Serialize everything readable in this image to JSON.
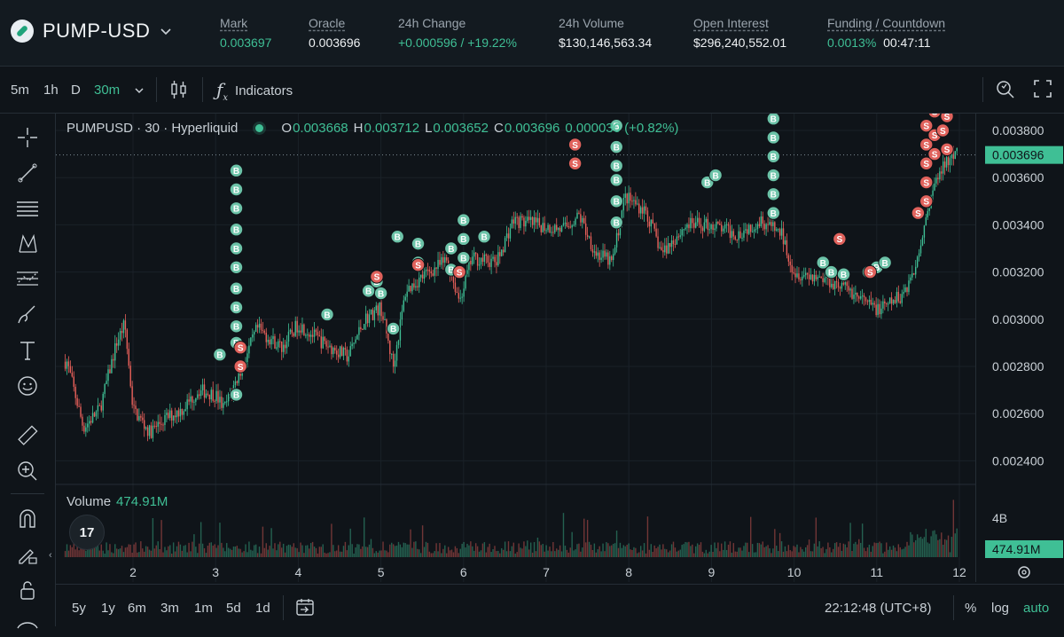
{
  "market": {
    "symbol": "PUMP-USD",
    "mark_label": "Mark",
    "mark": "0.003697",
    "oracle_label": "Oracle",
    "oracle": "0.003696",
    "change_label": "24h Change",
    "change": "+0.000596 / +19.22%",
    "volume_label": "24h Volume",
    "volume": "$130,146,563.34",
    "oi_label": "Open Interest",
    "oi": "$296,240,552.01",
    "funding_label": "Funding / Countdown",
    "funding": "0.0013%",
    "countdown": "00:47:11"
  },
  "toolbar": {
    "timeframes": [
      "5m",
      "1h",
      "D",
      "30m"
    ],
    "active_timeframe": "30m",
    "indicators_label": "Indicators"
  },
  "legend": {
    "title": "PUMPUSD · 30 · Hyperliquid",
    "o_label": "O",
    "o": "0.003668",
    "h_label": "H",
    "h": "0.003712",
    "l_label": "L",
    "l": "0.003652",
    "c_label": "C",
    "c": "0.003696",
    "chg": "0.000030 (+0.82%)"
  },
  "volume": {
    "label": "Volume",
    "value": "474.91M",
    "axis_tick": "4B",
    "current": "474.91M"
  },
  "price_axis": {
    "ticks": [
      "0.003800",
      "0.003600",
      "0.003400",
      "0.003200",
      "0.003000",
      "0.002800",
      "0.002600",
      "0.002400"
    ],
    "current": "0.003696"
  },
  "time_axis": {
    "ticks": [
      "2",
      "3",
      "4",
      "5",
      "6",
      "7",
      "8",
      "9",
      "10",
      "11",
      "12"
    ]
  },
  "bottom": {
    "ranges": [
      "5y",
      "1y",
      "6m",
      "3m",
      "1m",
      "5d",
      "1d"
    ],
    "clock": "22:12:48 (UTC+8)",
    "percent": "%",
    "log": "log",
    "auto": "auto"
  },
  "tv_logo": "17",
  "markers": {
    "buy": "B",
    "sell": "S"
  },
  "colors": {
    "up": "#3fbf95",
    "down": "#e8605a",
    "bg": "#0f1419",
    "accent": "#3fbf95"
  },
  "chart_data": {
    "type": "candlestick",
    "ylim": [
      0.0023,
      0.0039
    ],
    "close_path": [
      [
        1.2,
        0.00282
      ],
      [
        1.4,
        0.00254
      ],
      [
        1.6,
        0.00262
      ],
      [
        1.8,
        0.0029
      ],
      [
        1.9,
        0.00298
      ],
      [
        2.0,
        0.00262
      ],
      [
        2.2,
        0.00252
      ],
      [
        2.4,
        0.00258
      ],
      [
        2.6,
        0.00262
      ],
      [
        2.8,
        0.0027
      ],
      [
        3.0,
        0.00268
      ],
      [
        3.1,
        0.00262
      ],
      [
        3.3,
        0.00278
      ],
      [
        3.5,
        0.00296
      ],
      [
        3.8,
        0.00288
      ],
      [
        4.0,
        0.00298
      ],
      [
        4.3,
        0.0029
      ],
      [
        4.6,
        0.00284
      ],
      [
        4.8,
        0.003
      ],
      [
        5.0,
        0.00305
      ],
      [
        5.15,
        0.0028
      ],
      [
        5.3,
        0.00312
      ],
      [
        5.5,
        0.00318
      ],
      [
        5.8,
        0.00325
      ],
      [
        5.95,
        0.00308
      ],
      [
        6.1,
        0.00326
      ],
      [
        6.4,
        0.00324
      ],
      [
        6.6,
        0.00342
      ],
      [
        6.9,
        0.0034
      ],
      [
        7.2,
        0.00338
      ],
      [
        7.4,
        0.00344
      ],
      [
        7.6,
        0.00328
      ],
      [
        7.8,
        0.00324
      ],
      [
        7.95,
        0.00352
      ],
      [
        8.2,
        0.00346
      ],
      [
        8.4,
        0.00328
      ],
      [
        8.7,
        0.0034
      ],
      [
        9.0,
        0.0034
      ],
      [
        9.3,
        0.00336
      ],
      [
        9.6,
        0.00342
      ],
      [
        9.85,
        0.00336
      ],
      [
        10.0,
        0.0032
      ],
      [
        10.3,
        0.00318
      ],
      [
        10.6,
        0.00314
      ],
      [
        10.9,
        0.00306
      ],
      [
        11.05,
        0.00304
      ],
      [
        11.3,
        0.0031
      ],
      [
        11.45,
        0.0032
      ],
      [
        11.6,
        0.00345
      ],
      [
        11.75,
        0.00362
      ],
      [
        11.85,
        0.00366
      ],
      [
        11.95,
        0.003696
      ]
    ],
    "buy_markers": [
      [
        3.05,
        0.00285
      ],
      [
        3.25,
        0.00268
      ],
      [
        3.25,
        0.0029
      ],
      [
        3.25,
        0.00297
      ],
      [
        3.25,
        0.00305
      ],
      [
        3.25,
        0.00313
      ],
      [
        3.25,
        0.00322
      ],
      [
        3.25,
        0.0033
      ],
      [
        3.25,
        0.00338
      ],
      [
        3.25,
        0.00347
      ],
      [
        3.25,
        0.00355
      ],
      [
        3.25,
        0.00363
      ],
      [
        4.35,
        0.00302
      ],
      [
        4.85,
        0.00312
      ],
      [
        4.95,
        0.00316
      ],
      [
        5.0,
        0.00311
      ],
      [
        5.15,
        0.00296
      ],
      [
        5.2,
        0.00335
      ],
      [
        5.45,
        0.00324
      ],
      [
        5.45,
        0.00332
      ],
      [
        5.85,
        0.0033
      ],
      [
        5.85,
        0.00321
      ],
      [
        6.0,
        0.00326
      ],
      [
        6.0,
        0.00334
      ],
      [
        6.0,
        0.00342
      ],
      [
        6.25,
        0.00335
      ],
      [
        7.85,
        0.00341
      ],
      [
        7.85,
        0.0035
      ],
      [
        7.85,
        0.00359
      ],
      [
        7.85,
        0.00365
      ],
      [
        7.85,
        0.00373
      ],
      [
        7.85,
        0.00382
      ],
      [
        7.85,
        0.00389
      ],
      [
        8.95,
        0.00358
      ],
      [
        9.05,
        0.00361
      ],
      [
        9.75,
        0.00345
      ],
      [
        9.75,
        0.00353
      ],
      [
        9.75,
        0.00361
      ],
      [
        9.75,
        0.00369
      ],
      [
        9.75,
        0.00377
      ],
      [
        9.75,
        0.00385
      ],
      [
        10.35,
        0.00324
      ],
      [
        10.45,
        0.0032
      ],
      [
        10.6,
        0.00319
      ],
      [
        10.9,
        0.0032
      ],
      [
        11.0,
        0.00322
      ],
      [
        11.1,
        0.00324
      ]
    ],
    "sell_markers": [
      [
        3.3,
        0.00288
      ],
      [
        3.3,
        0.0028
      ],
      [
        4.95,
        0.00318
      ],
      [
        5.45,
        0.00323
      ],
      [
        5.95,
        0.0032
      ],
      [
        7.35,
        0.00374
      ],
      [
        7.35,
        0.00366
      ],
      [
        10.55,
        0.00334
      ],
      [
        10.92,
        0.0032
      ],
      [
        11.5,
        0.00345
      ],
      [
        11.6,
        0.0035
      ],
      [
        11.6,
        0.00358
      ],
      [
        11.6,
        0.00366
      ],
      [
        11.6,
        0.00374
      ],
      [
        11.6,
        0.00382
      ],
      [
        11.7,
        0.00378
      ],
      [
        11.7,
        0.0037
      ],
      [
        11.8,
        0.0038
      ],
      [
        11.85,
        0.00372
      ],
      [
        11.7,
        0.00388
      ],
      [
        11.85,
        0.00386
      ],
      [
        11.9,
        0.0039
      ]
    ]
  }
}
